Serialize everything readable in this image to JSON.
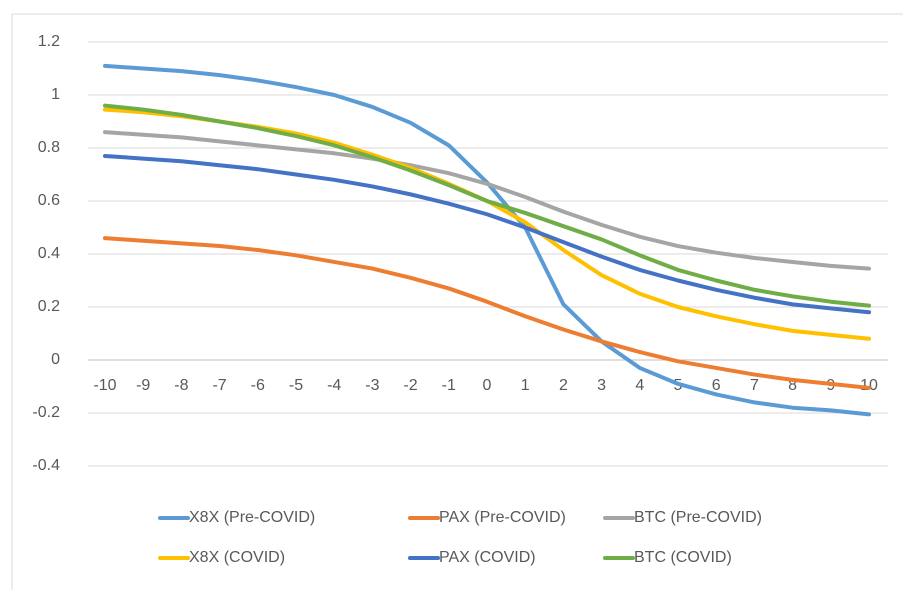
{
  "chart_data": {
    "type": "line",
    "x": [
      -10,
      -9,
      -8,
      -7,
      -6,
      -5,
      -4,
      -3,
      -2,
      -1,
      0,
      1,
      2,
      3,
      4,
      5,
      6,
      7,
      8,
      9,
      10
    ],
    "xlim": [
      -10,
      10
    ],
    "xticks": [
      -10,
      -9,
      -8,
      -7,
      -6,
      -5,
      -4,
      -3,
      -2,
      -1,
      0,
      1,
      2,
      3,
      4,
      5,
      6,
      7,
      8,
      9,
      10
    ],
    "ylim": [
      -0.4,
      1.2
    ],
    "yticks": [
      -0.4,
      -0.2,
      0,
      0.2,
      0.4,
      0.6,
      0.8,
      1,
      1.2
    ],
    "grid": true,
    "legend": "bottom",
    "series": [
      {
        "name": "X8X (Pre-COVID)",
        "color": "#5b9bd5",
        "values": [
          1.11,
          1.1,
          1.09,
          1.075,
          1.055,
          1.03,
          1.0,
          0.955,
          0.895,
          0.81,
          0.67,
          0.5,
          0.21,
          0.07,
          -0.03,
          -0.09,
          -0.13,
          -0.16,
          -0.18,
          -0.19,
          -0.205
        ]
      },
      {
        "name": "PAX (Pre-COVID)",
        "color": "#ed7d31",
        "values": [
          0.46,
          0.45,
          0.44,
          0.43,
          0.415,
          0.395,
          0.37,
          0.345,
          0.31,
          0.27,
          0.22,
          0.165,
          0.115,
          0.07,
          0.03,
          -0.005,
          -0.03,
          -0.055,
          -0.075,
          -0.09,
          -0.105
        ]
      },
      {
        "name": "BTC (Pre-COVID)",
        "color": "#a5a5a5",
        "values": [
          0.86,
          0.85,
          0.84,
          0.825,
          0.81,
          0.795,
          0.78,
          0.76,
          0.735,
          0.705,
          0.665,
          0.615,
          0.56,
          0.51,
          0.465,
          0.43,
          0.405,
          0.385,
          0.37,
          0.355,
          0.345
        ]
      },
      {
        "name": "X8X (COVID)",
        "color": "#ffc000",
        "values": [
          0.945,
          0.935,
          0.92,
          0.9,
          0.88,
          0.855,
          0.82,
          0.775,
          0.725,
          0.665,
          0.6,
          0.52,
          0.415,
          0.32,
          0.25,
          0.2,
          0.165,
          0.135,
          0.11,
          0.095,
          0.08
        ]
      },
      {
        "name": "PAX (COVID)",
        "color": "#4472c4",
        "values": [
          0.77,
          0.76,
          0.75,
          0.735,
          0.72,
          0.7,
          0.68,
          0.655,
          0.625,
          0.59,
          0.55,
          0.5,
          0.445,
          0.39,
          0.34,
          0.3,
          0.265,
          0.235,
          0.21,
          0.195,
          0.18
        ]
      },
      {
        "name": "BTC (COVID)",
        "color": "#70ad47",
        "values": [
          0.96,
          0.945,
          0.925,
          0.9,
          0.875,
          0.845,
          0.81,
          0.765,
          0.715,
          0.66,
          0.6,
          0.555,
          0.505,
          0.455,
          0.395,
          0.34,
          0.3,
          0.265,
          0.24,
          0.22,
          0.205
        ]
      }
    ]
  }
}
